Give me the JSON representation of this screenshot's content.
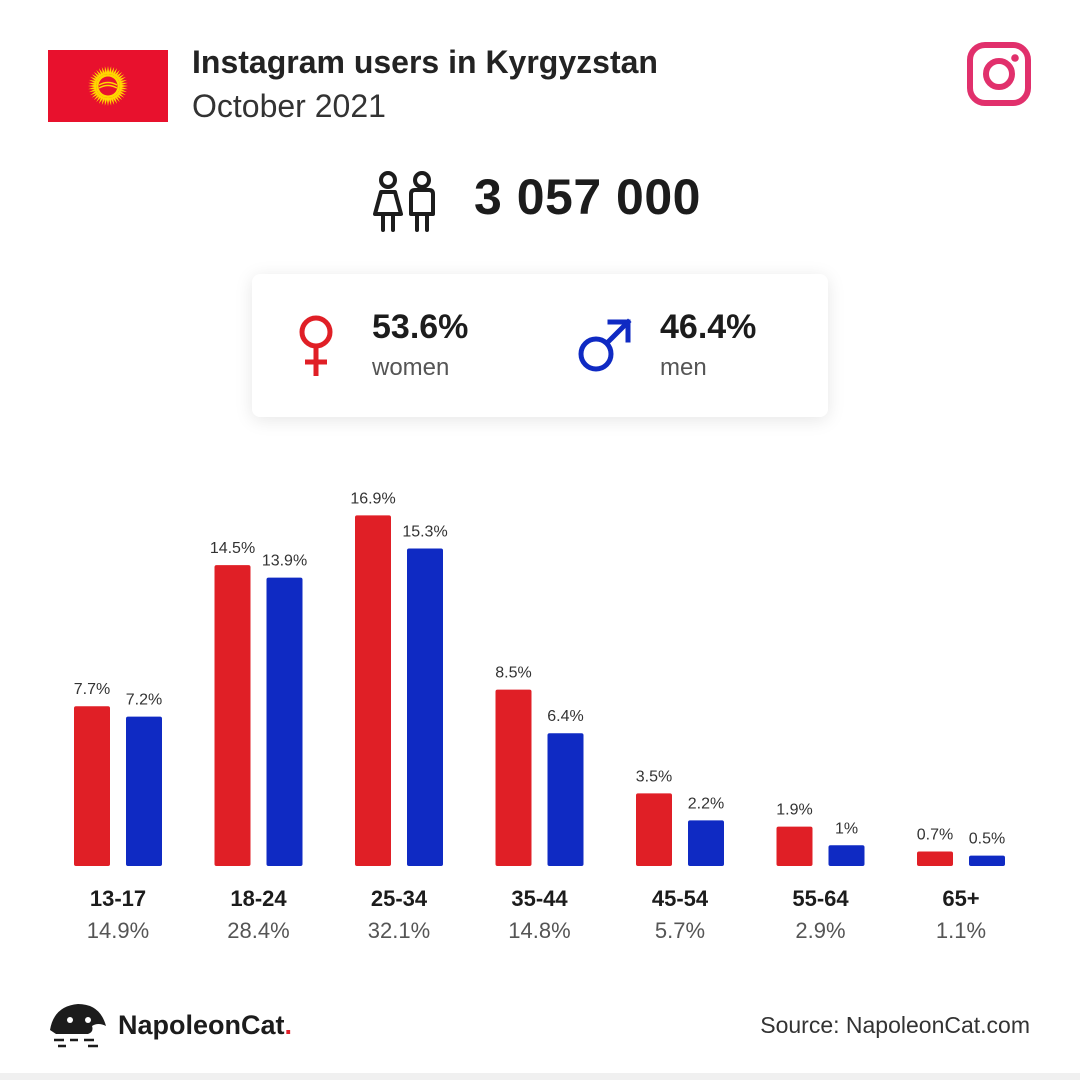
{
  "header": {
    "title": "Instagram users in Kyrgyzstan",
    "subtitle": "October 2021"
  },
  "total_users": "3 057 000",
  "gender": {
    "women": {
      "value": "53.6%",
      "label": "women"
    },
    "men": {
      "value": "46.4%",
      "label": "men"
    }
  },
  "colors": {
    "women": "#e01f26",
    "men": "#0f2ac3",
    "instagram": "#e1306c"
  },
  "icons": [
    "kyrgyzstan-flag-icon",
    "instagram-icon",
    "people-icon",
    "female-symbol-icon",
    "male-symbol-icon",
    "napoleoncat-logo-icon"
  ],
  "chart_data": {
    "type": "bar",
    "categories": [
      "13-17",
      "18-24",
      "25-34",
      "35-44",
      "45-54",
      "55-64",
      "65+"
    ],
    "series": [
      {
        "name": "women",
        "values": [
          7.7,
          14.5,
          16.9,
          8.5,
          3.5,
          1.9,
          0.7
        ],
        "labels": [
          "7.7%",
          "14.5%",
          "16.9%",
          "8.5%",
          "3.5%",
          "1.9%",
          "0.7%"
        ]
      },
      {
        "name": "men",
        "values": [
          7.2,
          13.9,
          15.3,
          6.4,
          2.2,
          1.0,
          0.5
        ],
        "labels": [
          "7.2%",
          "13.9%",
          "15.3%",
          "6.4%",
          "2.2%",
          "1%",
          "0.5%"
        ]
      }
    ],
    "category_totals": [
      "14.9%",
      "28.4%",
      "32.1%",
      "14.8%",
      "5.7%",
      "2.9%",
      "1.1%"
    ],
    "ylim": [
      0,
      17
    ]
  },
  "footer": {
    "brand": "NapoleonCat",
    "brand_dot": ".",
    "source": "Source: NapoleonCat.com"
  }
}
